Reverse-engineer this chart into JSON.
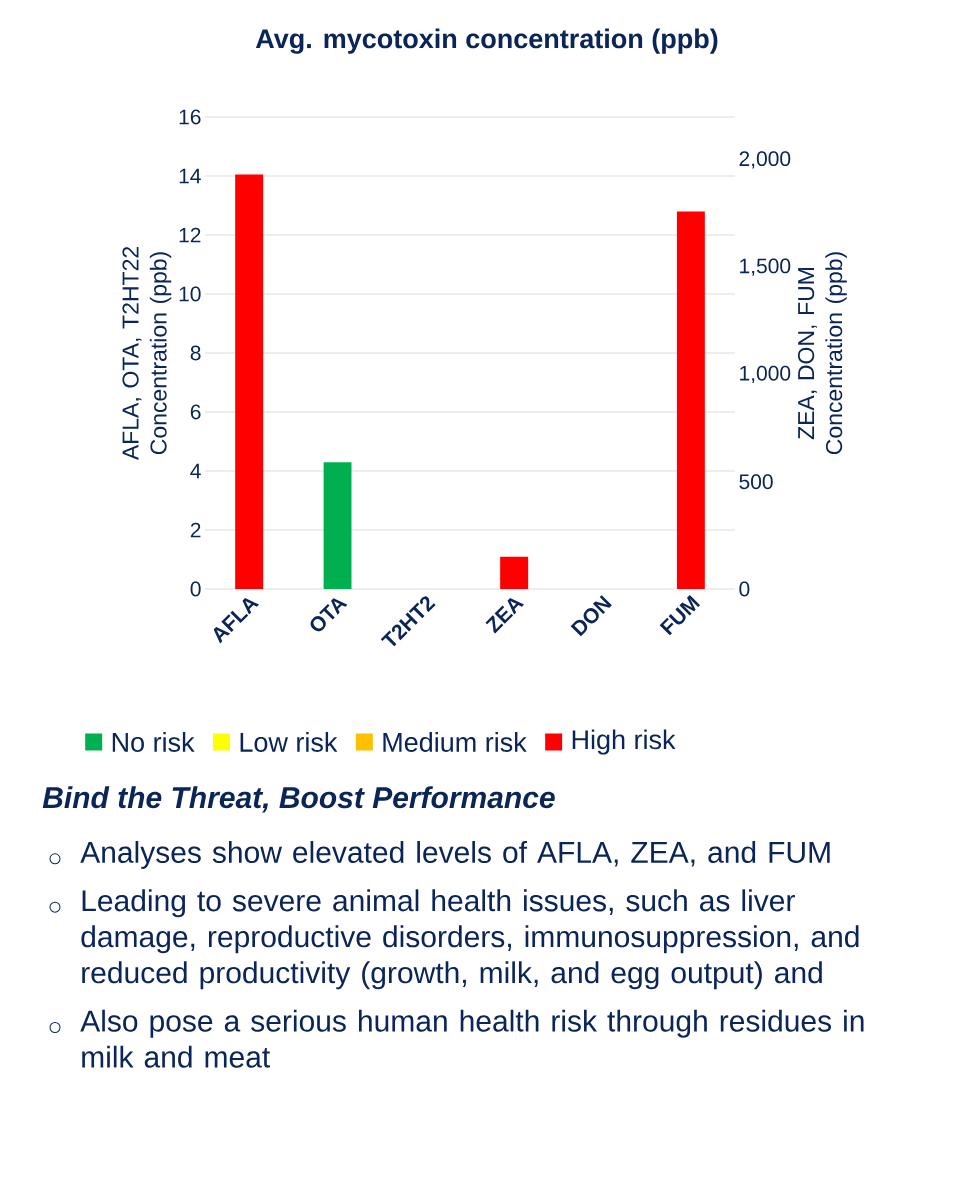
{
  "chart_data": {
    "type": "bar",
    "title": "Avg. mycotoxin concentration (ppb)",
    "categories": [
      "AFLA",
      "OTA",
      "T2HT2",
      "ZEA",
      "DON",
      "FUM"
    ],
    "series": [
      {
        "name": "No risk",
        "color": "#00b050",
        "values": [
          null,
          4.3,
          0,
          null,
          null,
          null
        ]
      },
      {
        "name": "Low risk",
        "color": "#ffff00",
        "values": [
          null,
          null,
          null,
          null,
          null,
          null
        ]
      },
      {
        "name": "Medium risk",
        "color": "#ffc000",
        "values": [
          null,
          null,
          null,
          null,
          null,
          null
        ]
      },
      {
        "name": "High risk",
        "color": "#ff0000",
        "values": [
          14.05,
          null,
          null,
          null,
          null,
          null
        ]
      },
      {
        "color": "#ff0000",
        "axis": "y2",
        "values": [
          null,
          null,
          null,
          150,
          0,
          1760
        ]
      }
    ],
    "ylabel": "AFLA, OTA, T2HT22 Concentration (ppb)",
    "y2label": "ZEA, DON, FUM Concentration (ppb)",
    "ylim": [
      0,
      16
    ],
    "yticks": [
      0,
      2,
      4,
      6,
      8,
      10,
      12,
      14,
      16
    ],
    "y2lim": [
      0,
      2200
    ],
    "y2ticks": [
      0,
      500,
      {
        "value": 1000,
        "label": "1,000"
      },
      {
        "value": 1500,
        "label": "1,500"
      },
      {
        "value": 2000,
        "label": "2,000"
      }
    ],
    "grid": "y",
    "legend": "bottom",
    "annotations": [
      "Bind the Threat, Boost Performance",
      "Analyses show elevated levels of AFLA, ZEA, and FUM",
      "Leading to severe animal health issues, such as liver damage, reproductive disorders, immunosuppression, and reduced productivity (growth, milk, and egg output) and",
      "Also pose a serious human health risk through residues in milk and meat"
    ]
  }
}
